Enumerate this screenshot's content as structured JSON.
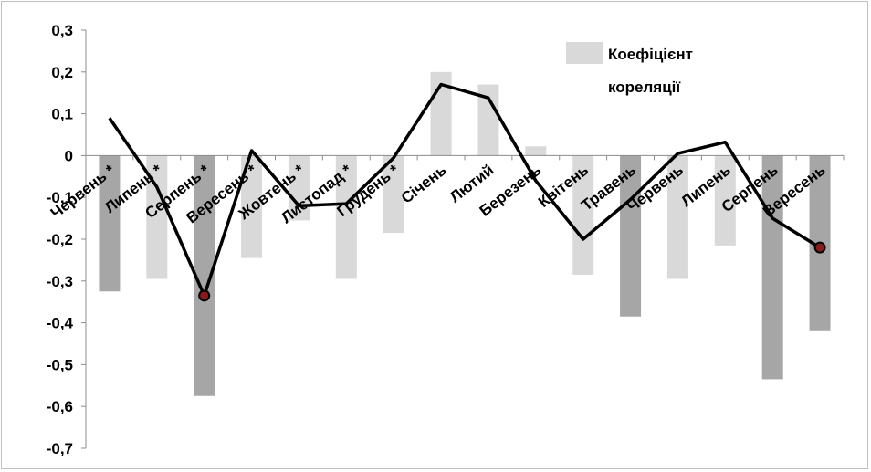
{
  "chart_data": {
    "type": "bar",
    "categories": [
      "Червень *",
      "Липень *",
      "Серпень *",
      "Вересень *",
      "Жовтень *",
      "Листопад *",
      "Грудень *",
      "Січень",
      "Лютий",
      "Березень",
      "Квітень",
      "Травень",
      "Червень",
      "Липень",
      "Серпень",
      "Вересень"
    ],
    "series": [
      {
        "name": "Коефіцієнт кореляції",
        "values": [
          -0.325,
          -0.295,
          -0.575,
          -0.245,
          -0.155,
          -0.295,
          -0.185,
          0.2,
          0.17,
          0.022,
          -0.285,
          -0.385,
          -0.295,
          -0.215,
          -0.535,
          -0.42
        ],
        "colors": [
          "#a6a6a6",
          "#d9d9d9",
          "#a6a6a6",
          "#d9d9d9",
          "#d9d9d9",
          "#d9d9d9",
          "#d9d9d9",
          "#d9d9d9",
          "#d9d9d9",
          "#d9d9d9",
          "#d9d9d9",
          "#a6a6a6",
          "#d9d9d9",
          "#d9d9d9",
          "#a6a6a6",
          "#a6a6a6"
        ]
      },
      {
        "type": "line",
        "values": [
          0.09,
          -0.075,
          -0.335,
          0.012,
          -0.12,
          -0.115,
          -0.005,
          0.17,
          0.138,
          -0.06,
          -0.2,
          -0.105,
          0.005,
          0.032,
          -0.15,
          -0.22
        ],
        "color": "#000000",
        "marked_points": [
          2,
          15
        ]
      }
    ],
    "ylim": [
      -0.7,
      0.3
    ],
    "yticks": [
      0.3,
      0.2,
      0.1,
      0,
      -0.1,
      -0.2,
      -0.3,
      -0.4,
      -0.5,
      -0.6,
      -0.7
    ],
    "ytick_labels": [
      "0,3",
      "0,2",
      "0,1",
      "0",
      "-0,1",
      "-0,2",
      "-0,3",
      "-0,4",
      "-0,5",
      "-0,6",
      "-0,7"
    ],
    "xlabel": "",
    "ylabel": "",
    "title": "",
    "legend": {
      "position": "top-right",
      "label_lines": [
        "Коефіцієнт",
        "кореляції"
      ]
    },
    "grid": false,
    "marker_color": "#8b1a1a"
  }
}
